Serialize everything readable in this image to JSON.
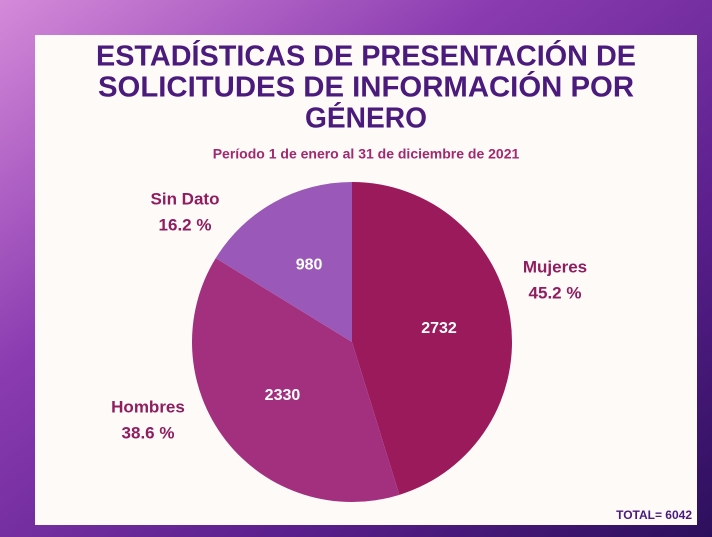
{
  "chart_data": {
    "type": "pie",
    "title": [
      "ESTADÍSTICAS DE PRESENTACIÓN DE",
      "SOLICITUDES DE INFORMACIÓN POR",
      "GÉNERO"
    ],
    "subtitle": "Período 1 de enero al 31 de diciembre de 2021",
    "categories": [
      "Mujeres",
      "Hombres",
      "Sin Dato"
    ],
    "values": [
      2732,
      2330,
      980
    ],
    "percent_labels": [
      "45.2 %",
      "38.6 %",
      "16.2 %"
    ],
    "colors": [
      "#9a1a5b",
      "#a3307f",
      "#9a58b8"
    ],
    "total_label": "TOTAL= 6042"
  }
}
